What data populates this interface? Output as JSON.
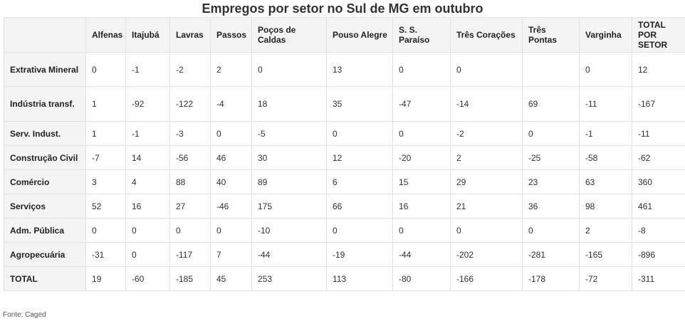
{
  "chart_data": {
    "type": "table",
    "title": "Empregos por setor no Sul de MG em outubro",
    "columns": [
      "",
      "Alfenas",
      "Itajubá",
      "Lavras",
      "Passos",
      "Poços de Caldas",
      "Pouso Alegre",
      "S. S. Paraíso",
      "Três Corações",
      "Três Pontas",
      "Varginha",
      "TOTAL POR SETOR"
    ],
    "rows": [
      {
        "label": "Extrativa Mineral",
        "values": [
          "0",
          "-1",
          "-2",
          "2",
          "0",
          "13",
          "0",
          "0",
          "",
          "0",
          "12"
        ]
      },
      {
        "label": "Indústria transf.",
        "values": [
          "1",
          "-92",
          "-122",
          "-4",
          "18",
          "35",
          "-47",
          "-14",
          "69",
          "-11",
          "-167"
        ]
      },
      {
        "label": "Serv. Indust.",
        "values": [
          "1",
          "-1",
          "-3",
          "0",
          "-5",
          "0",
          "0",
          "-2",
          "0",
          "-1",
          "-11"
        ]
      },
      {
        "label": "Construção Civil",
        "values": [
          "-7",
          "14",
          "-56",
          "46",
          "30",
          "12",
          "-20",
          "2",
          "-25",
          "-58",
          "-62"
        ]
      },
      {
        "label": "Comércio",
        "values": [
          "3",
          "4",
          "88",
          "40",
          "89",
          "6",
          "15",
          "29",
          "23",
          "63",
          "360"
        ]
      },
      {
        "label": "Serviços",
        "values": [
          "52",
          "16",
          "27",
          "-46",
          "175",
          "66",
          "16",
          "21",
          "36",
          "98",
          "461"
        ]
      },
      {
        "label": "Adm. Pública",
        "values": [
          "0",
          "0",
          "0",
          "0",
          "-10",
          "0",
          "0",
          "0",
          "0",
          "2",
          "-8"
        ]
      },
      {
        "label": "Agropecuária",
        "values": [
          "-31",
          "0",
          "-117",
          "7",
          "-44",
          "-19",
          "-44",
          "-202",
          "-281",
          "-165",
          "-896"
        ]
      },
      {
        "label": "TOTAL",
        "values": [
          "19",
          "-60",
          "-185",
          "45",
          "253",
          "113",
          "-80",
          "-166",
          "-178",
          "-72",
          "-311"
        ]
      }
    ]
  },
  "source": "Fonte: Caged"
}
